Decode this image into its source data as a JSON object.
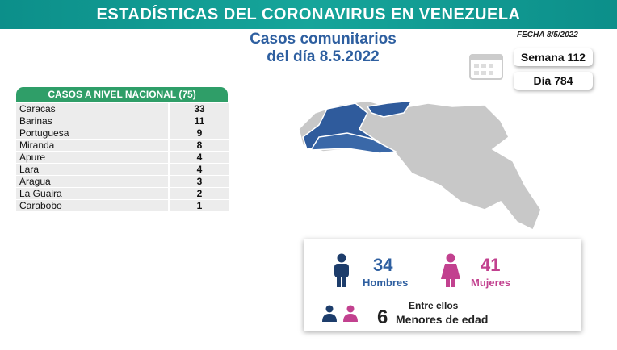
{
  "header": {
    "title": "ESTADÍSTICAS DEL CORONAVIRUS EN VENEZUELA"
  },
  "subtitle": {
    "line1": "Casos comunitarios",
    "line2": "del día 8.5.2022"
  },
  "date": "FECHA 8/5/2022",
  "week": "Semana 112",
  "day": "Día 784",
  "table": {
    "title": "CASOS A NIVEL NACIONAL",
    "total": "(75)",
    "rows": [
      [
        "Caracas",
        33
      ],
      [
        "Barinas",
        11
      ],
      [
        "Portuguesa",
        9
      ],
      [
        "Miranda",
        8
      ],
      [
        "Apure",
        4
      ],
      [
        "Lara",
        4
      ],
      [
        "Aragua",
        3
      ],
      [
        "La Guaira",
        2
      ],
      [
        "Carabobo",
        1
      ]
    ]
  },
  "gender": {
    "men": {
      "value": 34,
      "label": "Hombres"
    },
    "women": {
      "value": 41,
      "label": "Mujeres"
    }
  },
  "minors": {
    "intro": "Entre ellos",
    "value": 6,
    "label": "Menores de edad"
  }
}
